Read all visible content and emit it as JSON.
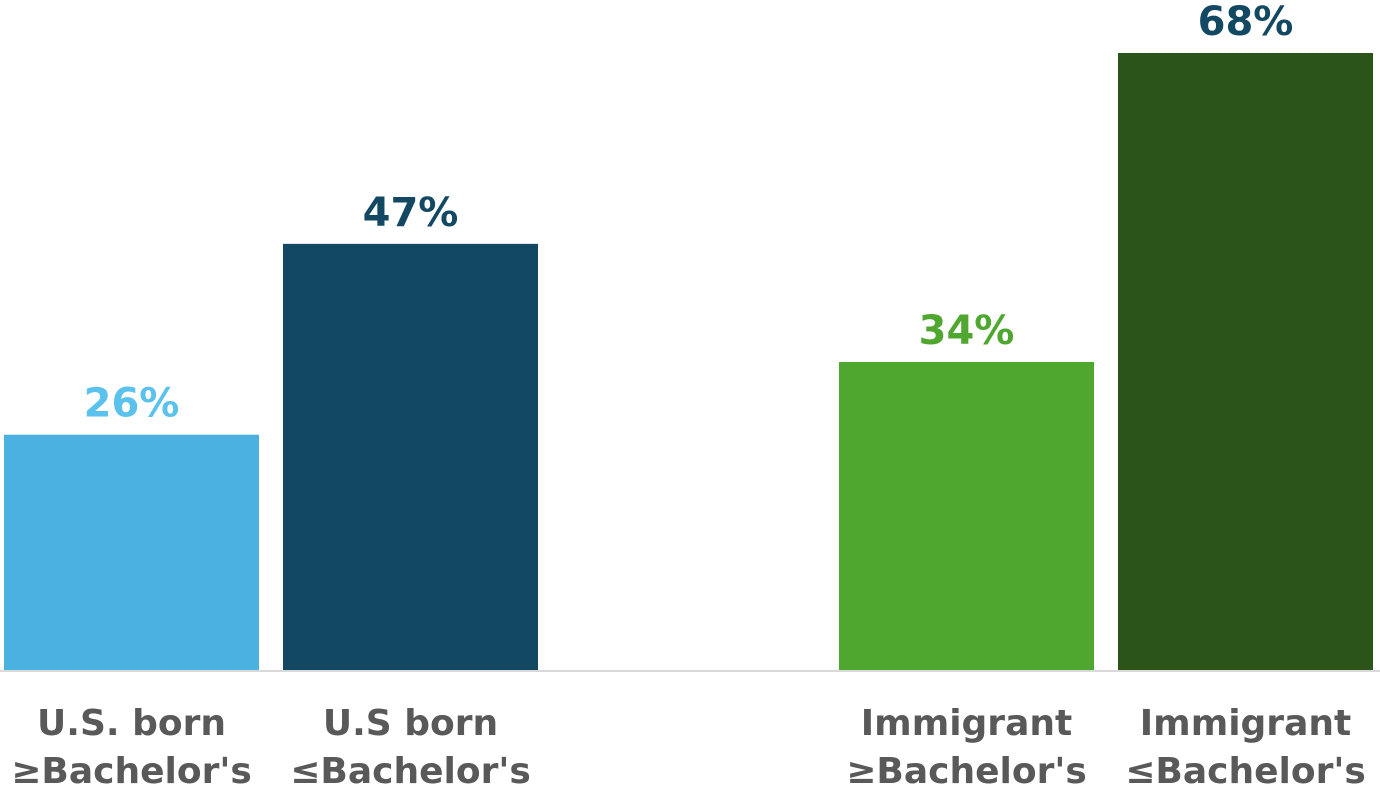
{
  "chart_data": {
    "type": "bar",
    "title": "",
    "xlabel": "",
    "ylabel": "",
    "ylim": [
      0,
      68
    ],
    "grid": false,
    "legend": "none",
    "value_suffix": "%",
    "categories": [
      [
        "U.S. born",
        "≥Bachelor's"
      ],
      [
        "U.S born",
        "≤Bachelor's"
      ],
      [
        "Immigrant",
        "≥Bachelor's"
      ],
      [
        "Immigrant",
        "≤Bachelor's"
      ]
    ],
    "values": [
      26,
      47,
      34,
      68
    ],
    "value_labels": [
      "26%",
      "47%",
      "34%",
      "68%"
    ],
    "bar_colors": [
      "#4AB1E1",
      "#134862",
      "#4FA730",
      "#2A5418"
    ],
    "label_colors": [
      "#5BC2EE",
      "#134862",
      "#4FA730",
      "#134862"
    ],
    "axis_color": "#D9D9D9"
  }
}
